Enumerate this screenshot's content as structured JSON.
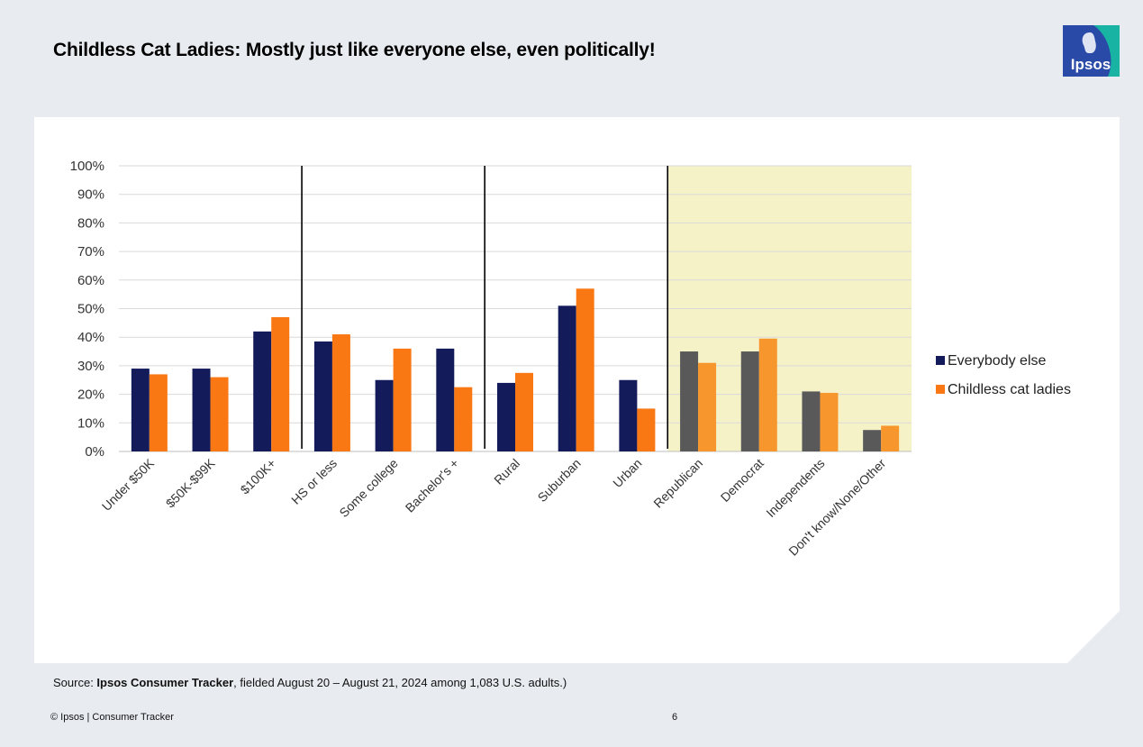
{
  "slide": {
    "title": "Childless Cat Ladies: Mostly just like everyone else, even politically!",
    "logo_text": "Ipsos",
    "source_prefix": "Source: ",
    "source_bold": "Ipsos Consumer Tracker",
    "source_rest": ", fielded August 20 – August 21, 2024 among 1,083 U.S. adults.)",
    "footer_left": "© Ipsos | Consumer Tracker",
    "page_number": "6"
  },
  "colors": {
    "everybody_else": "#141b5a",
    "childless_cat_ladies": "#fa7814",
    "party_everybody_else": "#595959",
    "party_childless_cat_ladies": "#f7962c",
    "party_highlight": "#f5f2c8",
    "logo_blue": "#2a4aa7",
    "logo_teal": "#18b3a2"
  },
  "chart_data": {
    "type": "bar",
    "categories": [
      "Under $50K",
      "$50K-$99K",
      "$100K+",
      "HS or less",
      "Some college",
      "Bachelor's +",
      "Rural",
      "Suburban",
      "Urban",
      "Republican",
      "Democrat",
      "Independents",
      "Don't know/None/Other"
    ],
    "series": [
      {
        "name": "Everybody else",
        "values": [
          29,
          29,
          42,
          38.5,
          25,
          36,
          24,
          51,
          25,
          35,
          35,
          21,
          7.5
        ]
      },
      {
        "name": "Childless cat ladies",
        "values": [
          27,
          26,
          47,
          41,
          36,
          22.5,
          27.5,
          57,
          15,
          31,
          39.5,
          20.5,
          9
        ]
      }
    ],
    "ylim": [
      0,
      100
    ],
    "ytick_labels": [
      "0%",
      "10%",
      "20%",
      "30%",
      "40%",
      "50%",
      "60%",
      "70%",
      "80%",
      "90%",
      "100%"
    ],
    "group_dividers_after": [
      2,
      5,
      8
    ],
    "highlighted_categories": [
      9,
      10,
      11,
      12
    ],
    "grid": true,
    "legend": "right"
  }
}
